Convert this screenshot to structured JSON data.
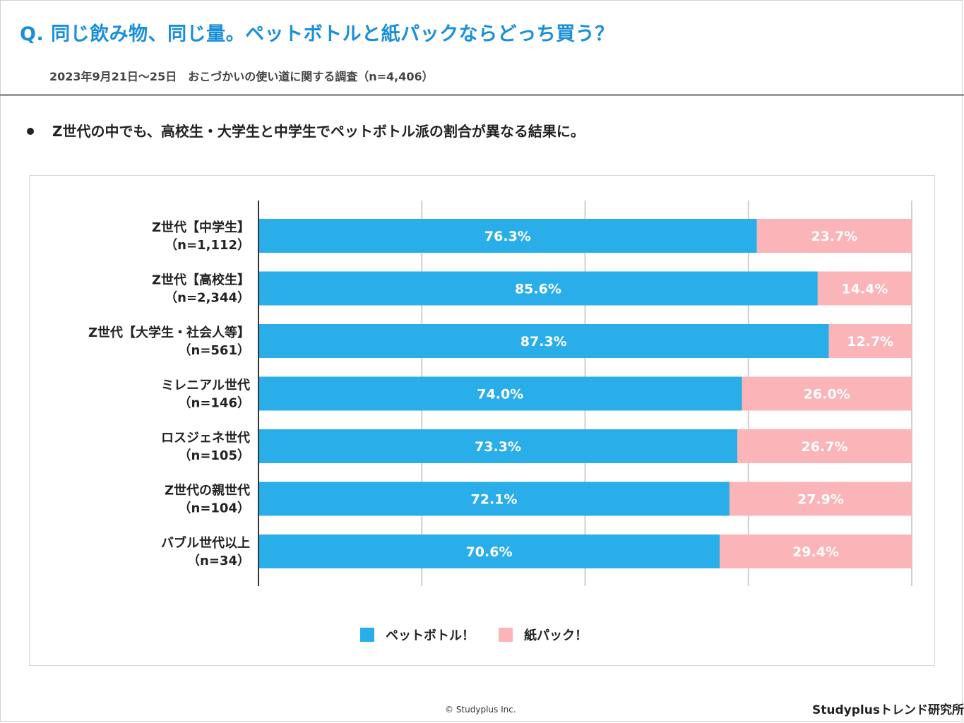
{
  "header": {
    "title": "Q. 同じ飲み物、同じ量。ペットボトルと紙パックならどっち買う？",
    "subtitle": "2023年9月21日～25日　おこづかいの使い道に関する調査（n=4,406）"
  },
  "bullet": "Z世代の中でも、高校生・大学生と中学生でペットボトル派の割合が異なる結果に。",
  "colors": {
    "series1": "#2aaeea",
    "series2": "#fbb4b8",
    "title": "#1a8fd8",
    "grid": "#cfcfcf",
    "axis": "#333333"
  },
  "chart_data": {
    "type": "bar",
    "orientation": "horizontal",
    "stacked": "100%",
    "categories": [
      [
        "Z世代【中学生】",
        "（n=1,112）"
      ],
      [
        "Z世代【高校生】",
        "（n=2,344）"
      ],
      [
        "Z世代【大学生・社会人等】",
        "（n=561）"
      ],
      [
        "ミレニアル世代",
        "（n=146）"
      ],
      [
        "ロスジェネ世代",
        "（n=105）"
      ],
      [
        "Z世代の親世代",
        "（n=104）"
      ],
      [
        "バブル世代以上",
        "（n=34）"
      ]
    ],
    "series": [
      {
        "name": "ペットボトル！",
        "values": [
          76.3,
          85.6,
          87.3,
          74.0,
          73.3,
          72.1,
          70.6
        ],
        "labels": [
          "76.3%",
          "85.6%",
          "87.3%",
          "74.0%",
          "73.3%",
          "72.1%",
          "70.6%"
        ]
      },
      {
        "name": "紙パック！",
        "values": [
          23.7,
          14.4,
          12.7,
          26.0,
          26.7,
          27.9,
          29.4
        ],
        "labels": [
          "23.7%",
          "14.4%",
          "12.7%",
          "26.0%",
          "26.7%",
          "27.9%",
          "29.4%"
        ]
      }
    ],
    "xlim": [
      0,
      100
    ],
    "grid": true,
    "legend_position": "bottom"
  },
  "legend": {
    "item1": "ペットボトル！",
    "item2": "紙パック！"
  },
  "footer": {
    "copyright": "© Studyplus Inc.",
    "brand": "Studyplusトレンド研究所"
  }
}
